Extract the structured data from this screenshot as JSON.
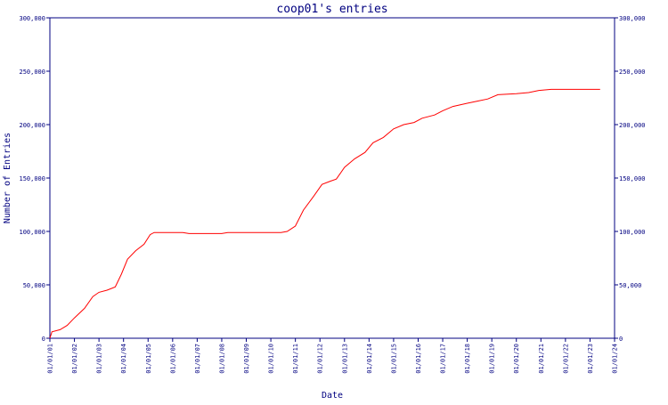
{
  "chart_data": {
    "type": "line",
    "title": "coop01's entries",
    "xlabel": "Date",
    "ylabel": "Number of Entries",
    "x_tick_labels": [
      "01/01/01",
      "01/01/02",
      "01/01/03",
      "01/01/04",
      "01/01/05",
      "01/01/06",
      "01/01/07",
      "01/01/08",
      "01/01/09",
      "01/01/10",
      "01/01/11",
      "01/01/12",
      "01/01/13",
      "01/01/14",
      "01/01/15",
      "01/01/16",
      "01/01/17",
      "01/01/18",
      "01/01/19",
      "01/01/20",
      "01/01/21",
      "01/01/22",
      "01/01/23",
      "01/01/24"
    ],
    "y_tick_labels": [
      "0",
      "50,000",
      "100,000",
      "150,000",
      "200,000",
      "250,000",
      "300,000"
    ],
    "ylim": [
      0,
      300000
    ],
    "xlim": [
      "2001-01-01",
      "2024-01-01"
    ],
    "y_axis_both_sides": true,
    "grid": false,
    "line_color": "#ff0000",
    "axis_color": "#000080",
    "series": [
      {
        "points": [
          [
            "2001-01-01",
            0
          ],
          [
            "2001-02-01",
            6000
          ],
          [
            "2001-06-01",
            8000
          ],
          [
            "2001-09-15",
            12000
          ],
          [
            "2002-01-01",
            19000
          ],
          [
            "2002-06-01",
            28000
          ],
          [
            "2002-10-01",
            39000
          ],
          [
            "2003-01-01",
            43000
          ],
          [
            "2003-05-01",
            45000
          ],
          [
            "2003-09-01",
            48000
          ],
          [
            "2003-12-01",
            60000
          ],
          [
            "2004-03-01",
            74000
          ],
          [
            "2004-07-01",
            82000
          ],
          [
            "2004-11-01",
            88000
          ],
          [
            "2005-02-01",
            97000
          ],
          [
            "2005-04-01",
            99000
          ],
          [
            "2006-06-01",
            99000
          ],
          [
            "2006-09-01",
            98000
          ],
          [
            "2008-01-01",
            98000
          ],
          [
            "2008-04-01",
            99000
          ],
          [
            "2010-06-01",
            99000
          ],
          [
            "2010-09-01",
            100000
          ],
          [
            "2011-01-01",
            105000
          ],
          [
            "2011-05-01",
            120000
          ],
          [
            "2011-10-01",
            133000
          ],
          [
            "2012-02-01",
            144000
          ],
          [
            "2012-06-01",
            147000
          ],
          [
            "2012-09-01",
            149000
          ],
          [
            "2013-01-01",
            160000
          ],
          [
            "2013-06-01",
            168000
          ],
          [
            "2013-11-01",
            174000
          ],
          [
            "2014-03-01",
            183000
          ],
          [
            "2014-08-01",
            188000
          ],
          [
            "2015-01-01",
            196000
          ],
          [
            "2015-06-01",
            200000
          ],
          [
            "2015-11-01",
            202000
          ],
          [
            "2016-03-01",
            206000
          ],
          [
            "2016-09-01",
            209000
          ],
          [
            "2017-01-01",
            213000
          ],
          [
            "2017-06-01",
            217000
          ],
          [
            "2018-01-01",
            220000
          ],
          [
            "2018-06-01",
            222000
          ],
          [
            "2018-11-01",
            224000
          ],
          [
            "2019-04-01",
            228000
          ],
          [
            "2020-01-01",
            229000
          ],
          [
            "2020-07-01",
            230000
          ],
          [
            "2020-12-01",
            232000
          ],
          [
            "2021-06-01",
            233000
          ],
          [
            "2023-06-01",
            233000
          ]
        ]
      }
    ]
  }
}
